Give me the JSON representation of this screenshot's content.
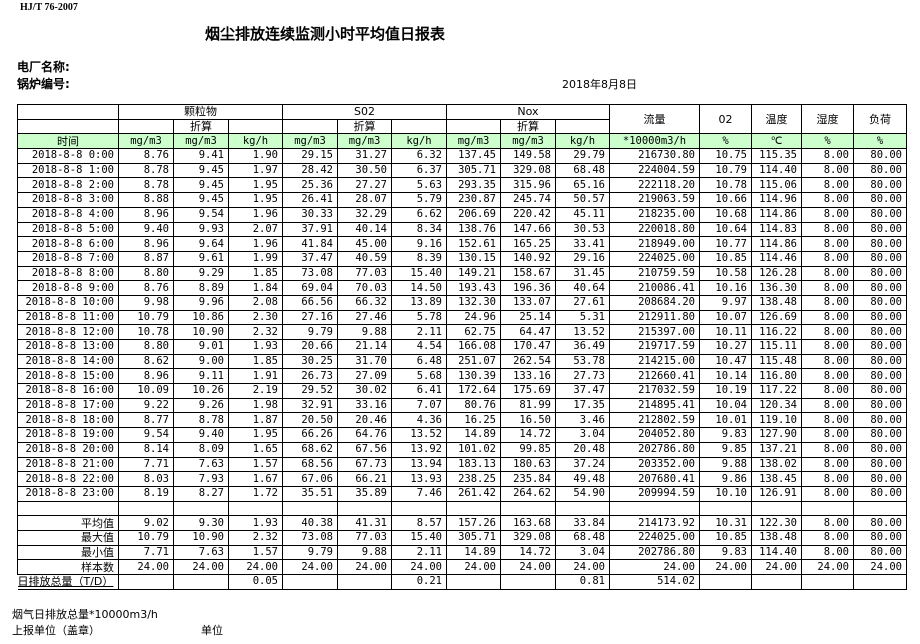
{
  "header": {
    "standard": "HJ/T  76-2007",
    "title": "烟尘排放连续监测小时平均值日报表",
    "plant_label": "电厂名称:",
    "boiler_label": "锅炉编号:",
    "date": "2018年8月8日"
  },
  "table": {
    "groups": {
      "particulate": "颗粒物",
      "so2": "S02",
      "nox": "Nox",
      "flow": "流量",
      "o2": "02",
      "temp": "温度",
      "humidity": "湿度",
      "load": "负荷"
    },
    "converted_label": "折算",
    "units": [
      "时间",
      "mg/m3",
      "mg/m3",
      "kg/h",
      "mg/m3",
      "mg/m3",
      "kg/h",
      "mg/m3",
      "mg/m3",
      "kg/h",
      "*10000m3/h",
      "%",
      "℃",
      "%",
      "%"
    ],
    "rows": [
      [
        "2018-8-8 0:00",
        "8.76",
        "9.41",
        "1.90",
        "29.15",
        "31.27",
        "6.32",
        "137.45",
        "149.58",
        "29.79",
        "216730.80",
        "10.75",
        "115.35",
        "8.00",
        "80.00"
      ],
      [
        "2018-8-8 1:00",
        "8.78",
        "9.45",
        "1.97",
        "28.42",
        "30.50",
        "6.37",
        "305.71",
        "329.08",
        "68.48",
        "224004.59",
        "10.79",
        "114.40",
        "8.00",
        "80.00"
      ],
      [
        "2018-8-8 2:00",
        "8.78",
        "9.45",
        "1.95",
        "25.36",
        "27.27",
        "5.63",
        "293.35",
        "315.96",
        "65.16",
        "222118.20",
        "10.78",
        "115.06",
        "8.00",
        "80.00"
      ],
      [
        "2018-8-8 3:00",
        "8.88",
        "9.45",
        "1.95",
        "26.41",
        "28.07",
        "5.79",
        "230.87",
        "245.74",
        "50.57",
        "219063.59",
        "10.66",
        "114.96",
        "8.00",
        "80.00"
      ],
      [
        "2018-8-8 4:00",
        "8.96",
        "9.54",
        "1.96",
        "30.33",
        "32.29",
        "6.62",
        "206.69",
        "220.42",
        "45.11",
        "218235.00",
        "10.68",
        "114.86",
        "8.00",
        "80.00"
      ],
      [
        "2018-8-8 5:00",
        "9.40",
        "9.93",
        "2.07",
        "37.91",
        "40.14",
        "8.34",
        "138.76",
        "147.66",
        "30.53",
        "220018.80",
        "10.64",
        "114.83",
        "8.00",
        "80.00"
      ],
      [
        "2018-8-8 6:00",
        "8.96",
        "9.64",
        "1.96",
        "41.84",
        "45.00",
        "9.16",
        "152.61",
        "165.25",
        "33.41",
        "218949.00",
        "10.77",
        "114.86",
        "8.00",
        "80.00"
      ],
      [
        "2018-8-8 7:00",
        "8.87",
        "9.61",
        "1.99",
        "37.47",
        "40.59",
        "8.39",
        "130.15",
        "140.92",
        "29.16",
        "224025.00",
        "10.85",
        "114.46",
        "8.00",
        "80.00"
      ],
      [
        "2018-8-8 8:00",
        "8.80",
        "9.29",
        "1.85",
        "73.08",
        "77.03",
        "15.40",
        "149.21",
        "158.67",
        "31.45",
        "210759.59",
        "10.58",
        "126.28",
        "8.00",
        "80.00"
      ],
      [
        "2018-8-8 9:00",
        "8.76",
        "8.89",
        "1.84",
        "69.04",
        "70.03",
        "14.50",
        "193.43",
        "196.36",
        "40.64",
        "210086.41",
        "10.16",
        "136.30",
        "8.00",
        "80.00"
      ],
      [
        "2018-8-8 10:00",
        "9.98",
        "9.96",
        "2.08",
        "66.56",
        "66.32",
        "13.89",
        "132.30",
        "133.07",
        "27.61",
        "208684.20",
        "9.97",
        "138.48",
        "8.00",
        "80.00"
      ],
      [
        "2018-8-8 11:00",
        "10.79",
        "10.86",
        "2.30",
        "27.16",
        "27.46",
        "5.78",
        "24.96",
        "25.14",
        "5.31",
        "212911.80",
        "10.07",
        "126.69",
        "8.00",
        "80.00"
      ],
      [
        "2018-8-8 12:00",
        "10.78",
        "10.90",
        "2.32",
        "9.79",
        "9.88",
        "2.11",
        "62.75",
        "64.47",
        "13.52",
        "215397.00",
        "10.11",
        "116.22",
        "8.00",
        "80.00"
      ],
      [
        "2018-8-8 13:00",
        "8.80",
        "9.01",
        "1.93",
        "20.66",
        "21.14",
        "4.54",
        "166.08",
        "170.47",
        "36.49",
        "219717.59",
        "10.27",
        "115.11",
        "8.00",
        "80.00"
      ],
      [
        "2018-8-8 14:00",
        "8.62",
        "9.00",
        "1.85",
        "30.25",
        "31.70",
        "6.48",
        "251.07",
        "262.54",
        "53.78",
        "214215.00",
        "10.47",
        "115.48",
        "8.00",
        "80.00"
      ],
      [
        "2018-8-8 15:00",
        "8.96",
        "9.11",
        "1.91",
        "26.73",
        "27.09",
        "5.68",
        "130.39",
        "133.16",
        "27.73",
        "212660.41",
        "10.14",
        "116.80",
        "8.00",
        "80.00"
      ],
      [
        "2018-8-8 16:00",
        "10.09",
        "10.26",
        "2.19",
        "29.52",
        "30.02",
        "6.41",
        "172.64",
        "175.69",
        "37.47",
        "217032.59",
        "10.19",
        "117.22",
        "8.00",
        "80.00"
      ],
      [
        "2018-8-8 17:00",
        "9.22",
        "9.26",
        "1.98",
        "32.91",
        "33.16",
        "7.07",
        "80.76",
        "81.99",
        "17.35",
        "214895.41",
        "10.04",
        "120.34",
        "8.00",
        "80.00"
      ],
      [
        "2018-8-8 18:00",
        "8.77",
        "8.78",
        "1.87",
        "20.50",
        "20.46",
        "4.36",
        "16.25",
        "16.50",
        "3.46",
        "212802.59",
        "10.01",
        "119.10",
        "8.00",
        "80.00"
      ],
      [
        "2018-8-8 19:00",
        "9.54",
        "9.40",
        "1.95",
        "66.26",
        "64.76",
        "13.52",
        "14.89",
        "14.72",
        "3.04",
        "204052.80",
        "9.83",
        "127.90",
        "8.00",
        "80.00"
      ],
      [
        "2018-8-8 20:00",
        "8.14",
        "8.09",
        "1.65",
        "68.62",
        "67.56",
        "13.92",
        "101.02",
        "99.85",
        "20.48",
        "202786.80",
        "9.85",
        "137.21",
        "8.00",
        "80.00"
      ],
      [
        "2018-8-8 21:00",
        "7.71",
        "7.63",
        "1.57",
        "68.56",
        "67.73",
        "13.94",
        "183.13",
        "180.63",
        "37.24",
        "203352.00",
        "9.88",
        "138.02",
        "8.00",
        "80.00"
      ],
      [
        "2018-8-8 22:00",
        "8.03",
        "7.93",
        "1.67",
        "67.06",
        "66.21",
        "13.93",
        "238.25",
        "235.84",
        "49.48",
        "207680.41",
        "9.86",
        "138.45",
        "8.00",
        "80.00"
      ],
      [
        "2018-8-8 23:00",
        "8.19",
        "8.27",
        "1.72",
        "35.51",
        "35.89",
        "7.46",
        "261.42",
        "264.62",
        "54.90",
        "209994.59",
        "10.10",
        "126.91",
        "8.00",
        "80.00"
      ]
    ],
    "summary": [
      [
        "平均值",
        "9.02",
        "9.30",
        "1.93",
        "40.38",
        "41.31",
        "8.57",
        "157.26",
        "163.68",
        "33.84",
        "214173.92",
        "10.31",
        "122.30",
        "8.00",
        "80.00"
      ],
      [
        "最大值",
        "10.79",
        "10.90",
        "2.32",
        "73.08",
        "77.03",
        "15.40",
        "305.71",
        "329.08",
        "68.48",
        "224025.00",
        "10.85",
        "138.48",
        "8.00",
        "80.00"
      ],
      [
        "最小值",
        "7.71",
        "7.63",
        "1.57",
        "9.79",
        "9.88",
        "2.11",
        "14.89",
        "14.72",
        "3.04",
        "202786.80",
        "9.83",
        "114.40",
        "8.00",
        "80.00"
      ],
      [
        "样本数",
        "24.00",
        "24.00",
        "24.00",
        "24.00",
        "24.00",
        "24.00",
        "24.00",
        "24.00",
        "24.00",
        "24.00",
        "24.00",
        "24.00",
        "24.00",
        "24.00"
      ]
    ],
    "total": [
      "日排放总量（T/D）",
      "",
      "",
      "0.05",
      "",
      "",
      "0.21",
      "",
      "",
      "0.81",
      "514.02",
      "",
      "",
      "",
      ""
    ]
  },
  "footer": {
    "flue_gas_total": "烟气日排放总量*10000m3/h",
    "reporting_unit": "上报单位（盖章）",
    "unit": "单位"
  }
}
